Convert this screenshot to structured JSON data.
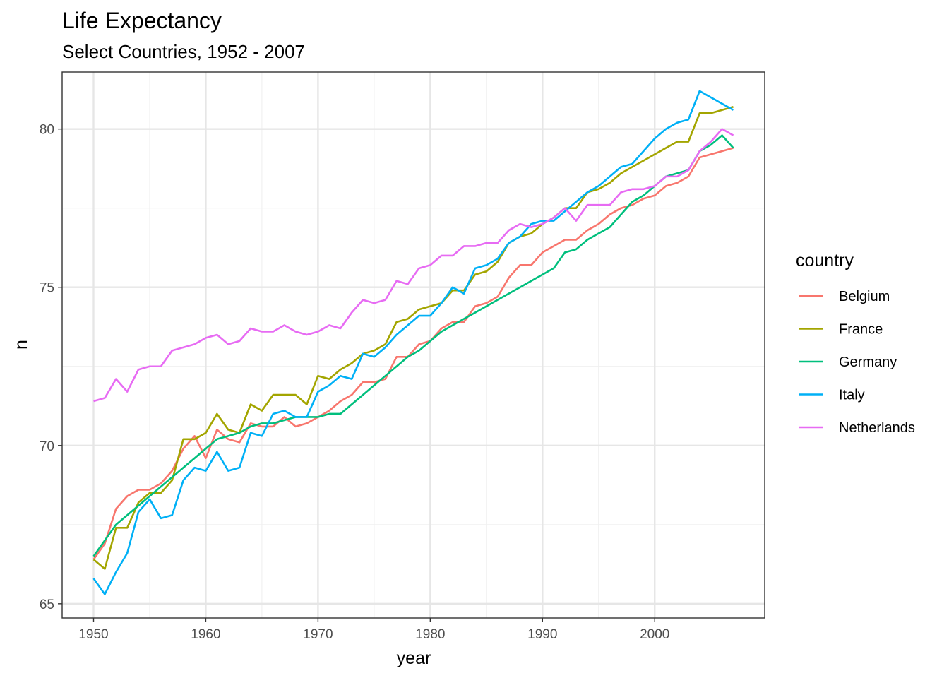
{
  "chart_data": {
    "type": "line",
    "title": "Life Expectancy",
    "subtitle": "Select Countries, 1952 - 2007",
    "xlabel": "year",
    "ylabel": "n",
    "xlim": [
      1947.2,
      2009.8
    ],
    "ylim": [
      64.55,
      81.8
    ],
    "xticks": [
      1950,
      1960,
      1970,
      1980,
      1990,
      2000
    ],
    "yticks": [
      65,
      70,
      75,
      80
    ],
    "grid": true,
    "legend": {
      "title": "country",
      "placement": "right"
    },
    "x": [
      1950,
      1951,
      1952,
      1953,
      1954,
      1955,
      1956,
      1957,
      1958,
      1959,
      1960,
      1961,
      1962,
      1963,
      1964,
      1965,
      1966,
      1967,
      1968,
      1969,
      1970,
      1971,
      1972,
      1973,
      1974,
      1975,
      1976,
      1977,
      1978,
      1979,
      1980,
      1981,
      1982,
      1983,
      1984,
      1985,
      1986,
      1987,
      1988,
      1989,
      1990,
      1991,
      1992,
      1993,
      1994,
      1995,
      1996,
      1997,
      1998,
      1999,
      2000,
      2001,
      2002,
      2003,
      2004,
      2005,
      2006,
      2007
    ],
    "series": [
      {
        "name": "Belgium",
        "color": "#F8766D",
        "values": [
          66.4,
          66.9,
          68.0,
          68.4,
          68.6,
          68.6,
          68.8,
          69.2,
          69.9,
          70.3,
          69.6,
          70.5,
          70.2,
          70.1,
          70.7,
          70.6,
          70.6,
          70.9,
          70.6,
          70.7,
          70.9,
          71.1,
          71.4,
          71.6,
          72.0,
          72.0,
          72.1,
          72.8,
          72.8,
          73.2,
          73.3,
          73.7,
          73.9,
          73.9,
          74.4,
          74.5,
          74.7,
          75.3,
          75.7,
          75.7,
          76.1,
          76.3,
          76.5,
          76.5,
          76.8,
          77.0,
          77.3,
          77.5,
          77.6,
          77.8,
          77.9,
          78.2,
          78.3,
          78.5,
          79.1,
          79.2,
          79.3,
          79.4
        ]
      },
      {
        "name": "France",
        "color": "#A3A500",
        "values": [
          66.4,
          66.1,
          67.4,
          67.4,
          68.2,
          68.5,
          68.5,
          68.9,
          70.2,
          70.2,
          70.4,
          71.0,
          70.5,
          70.4,
          71.3,
          71.1,
          71.6,
          71.6,
          71.6,
          71.3,
          72.2,
          72.1,
          72.4,
          72.6,
          72.9,
          73.0,
          73.2,
          73.9,
          74.0,
          74.3,
          74.4,
          74.5,
          74.9,
          74.9,
          75.4,
          75.5,
          75.8,
          76.4,
          76.6,
          76.7,
          77.0,
          77.2,
          77.5,
          77.5,
          78.0,
          78.1,
          78.3,
          78.6,
          78.8,
          79.0,
          79.2,
          79.4,
          79.6,
          79.6,
          80.5,
          80.5,
          80.6,
          80.7
        ]
      },
      {
        "name": "Germany",
        "color": "#00BF7D",
        "values": [
          66.5,
          67.0,
          67.5,
          67.8,
          68.1,
          68.4,
          68.7,
          69.0,
          69.3,
          69.6,
          69.9,
          70.2,
          70.3,
          70.4,
          70.6,
          70.7,
          70.7,
          70.8,
          70.9,
          70.9,
          70.9,
          71.0,
          71.0,
          71.3,
          71.6,
          71.9,
          72.2,
          72.5,
          72.8,
          73.0,
          73.3,
          73.6,
          73.8,
          74.0,
          74.2,
          74.4,
          74.6,
          74.8,
          75.0,
          75.2,
          75.4,
          75.6,
          76.1,
          76.2,
          76.5,
          76.7,
          76.9,
          77.3,
          77.7,
          77.9,
          78.2,
          78.5,
          78.6,
          78.7,
          79.3,
          79.5,
          79.8,
          79.4
        ]
      },
      {
        "name": "Italy",
        "color": "#00B0F6",
        "values": [
          65.8,
          65.3,
          66.0,
          66.6,
          67.9,
          68.3,
          67.7,
          67.8,
          68.9,
          69.3,
          69.2,
          69.8,
          69.2,
          69.3,
          70.4,
          70.3,
          71.0,
          71.1,
          70.9,
          70.9,
          71.7,
          71.9,
          72.2,
          72.1,
          72.9,
          72.8,
          73.1,
          73.5,
          73.8,
          74.1,
          74.1,
          74.5,
          75.0,
          74.8,
          75.6,
          75.7,
          75.9,
          76.4,
          76.6,
          77.0,
          77.1,
          77.1,
          77.4,
          77.7,
          78.0,
          78.2,
          78.5,
          78.8,
          78.9,
          79.3,
          79.7,
          80.0,
          80.2,
          80.3,
          81.2,
          81.0,
          80.8,
          80.6
        ]
      },
      {
        "name": "Netherlands",
        "color": "#E76BF3",
        "values": [
          71.4,
          71.5,
          72.1,
          71.7,
          72.4,
          72.5,
          72.5,
          73.0,
          73.1,
          73.2,
          73.4,
          73.5,
          73.2,
          73.3,
          73.7,
          73.6,
          73.6,
          73.8,
          73.6,
          73.5,
          73.6,
          73.8,
          73.7,
          74.2,
          74.6,
          74.5,
          74.6,
          75.2,
          75.1,
          75.6,
          75.7,
          76.0,
          76.0,
          76.3,
          76.3,
          76.4,
          76.4,
          76.8,
          77.0,
          76.9,
          77.0,
          77.2,
          77.5,
          77.1,
          77.6,
          77.6,
          77.6,
          78.0,
          78.1,
          78.1,
          78.2,
          78.5,
          78.5,
          78.7,
          79.3,
          79.6,
          80.0,
          79.8
        ]
      }
    ]
  }
}
